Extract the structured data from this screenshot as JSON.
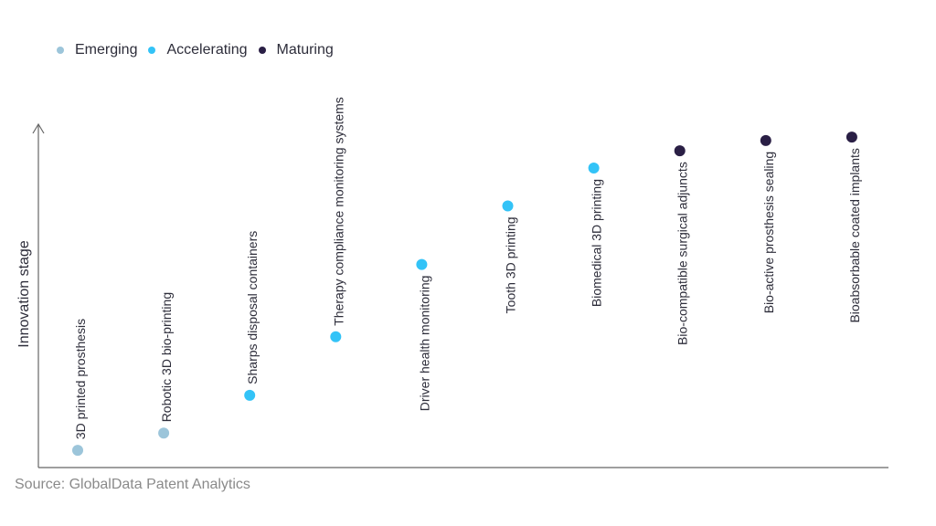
{
  "chart_data": {
    "type": "scatter",
    "title": "",
    "xlabel": "",
    "ylabel": "Innovation stage",
    "ylim": [
      0,
      100
    ],
    "grid": false,
    "legend_position": "top-left",
    "legend": [
      {
        "name": "Emerging",
        "color": "#9cc5da"
      },
      {
        "name": "Accelerating",
        "color": "#33c3f7"
      },
      {
        "name": "Maturing",
        "color": "#2a1f45"
      }
    ],
    "points": [
      {
        "label": "3D printed prosthesis",
        "stage": "Emerging",
        "value": 5
      },
      {
        "label": "Robotic 3D bio-printing",
        "stage": "Emerging",
        "value": 10
      },
      {
        "label": "Sharps disposal containers",
        "stage": "Accelerating",
        "value": 21
      },
      {
        "label": "Therapy compliance monitoring systems",
        "stage": "Accelerating",
        "value": 38
      },
      {
        "label": "Driver health monitoring",
        "stage": "Accelerating",
        "value": 59
      },
      {
        "label": "Tooth 3D printing",
        "stage": "Accelerating",
        "value": 76
      },
      {
        "label": "Biomedical 3D printing",
        "stage": "Accelerating",
        "value": 87
      },
      {
        "label": "Bio-compatible surgical adjuncts",
        "stage": "Maturing",
        "value": 92
      },
      {
        "label": "Bio-active prosthesis sealing",
        "stage": "Maturing",
        "value": 95
      },
      {
        "label": "Bioabsorbable coated implants",
        "stage": "Maturing",
        "value": 96
      }
    ]
  },
  "source": "Source: GlobalData Patent Analytics"
}
